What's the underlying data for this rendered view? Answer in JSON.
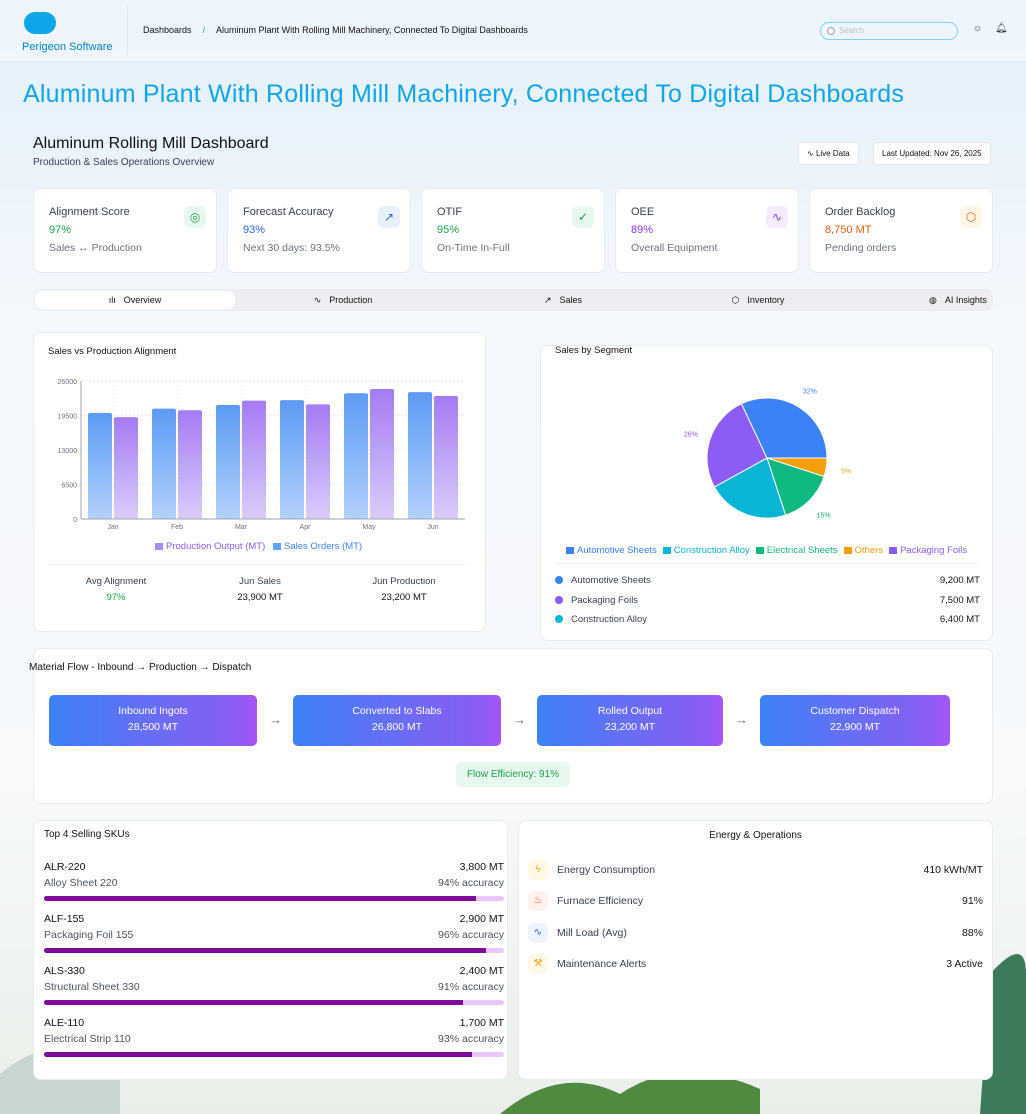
{
  "header": {
    "brand": "Perigeon Software",
    "breadcrumb": [
      "Dashboards",
      "Aluminum Plant With Rolling Mill Machinery, Connected To Digital Dashboards"
    ],
    "search_placeholder": "Search"
  },
  "page_title": "Aluminum Plant With Rolling Mill Machinery, Connected To Digital Dashboards",
  "dashboard": {
    "title": "Aluminum Rolling Mill Dashboard",
    "subtitle": "Production & Sales Operations Overview",
    "live_label": "Live Data",
    "updated": "Last Updated: Nov 26, 2025"
  },
  "kpis": [
    {
      "label": "Alignment Score",
      "value": "97%",
      "sub": "Sales ↔ Production",
      "icon": "target-icon",
      "color": "#16a34a",
      "bg": "#e7f9ee"
    },
    {
      "label": "Forecast Accuracy",
      "value": "93%",
      "sub": "Next 30 days: 93.5%",
      "icon": "trending-up-icon",
      "color": "#2563eb",
      "bg": "#e8f0fe"
    },
    {
      "label": "OTIF",
      "value": "95%",
      "sub": "On-Time In-Full",
      "icon": "check-circle-icon",
      "color": "#16a34a",
      "bg": "#e7f9ee"
    },
    {
      "label": "OEE",
      "value": "89%",
      "sub": "Overall Equipment",
      "icon": "activity-icon",
      "color": "#9333ea",
      "bg": "#f5ebfe"
    },
    {
      "label": "Order Backlog",
      "value": "8,750 MT",
      "sub": "Pending orders",
      "icon": "box-icon",
      "color": "#ea580c",
      "bg": "#fff5e6"
    }
  ],
  "tabs": [
    "Overview",
    "Production",
    "Sales",
    "Inventory",
    "AI Insights"
  ],
  "chart_data": [
    {
      "type": "bar",
      "title": "Sales vs Production Alignment",
      "categories": [
        "Jan",
        "Feb",
        "Mar",
        "Apr",
        "May",
        "Jun"
      ],
      "series": [
        {
          "name": "Sales Orders (MT)",
          "values": [
            20000,
            20800,
            21500,
            22400,
            23700,
            23900
          ],
          "color": "#60a5fa"
        },
        {
          "name": "Production Output (MT)",
          "values": [
            19200,
            20500,
            22300,
            21600,
            24500,
            23200
          ],
          "color": "#a78bfa"
        }
      ],
      "legend_order": [
        "Production Output (MT)",
        "Sales Orders (MT)"
      ],
      "yticks": [
        0,
        6500,
        13000,
        19500,
        26000
      ],
      "ylim": [
        0,
        26000
      ],
      "grid": true,
      "legend": "bottom"
    },
    {
      "type": "pie",
      "title": "Sales by Segment",
      "categories": [
        "Automotive Sheets",
        "Construction Alloy",
        "Electrical Sheets",
        "Others",
        "Packaging Foils"
      ],
      "values": [
        32,
        22,
        15,
        5,
        26
      ],
      "colors": [
        "#3b82f6",
        "#06b6d4",
        "#10b981",
        "#f59e0b",
        "#8b5cf6"
      ],
      "legend": "bottom"
    }
  ],
  "alignment_stats": [
    {
      "label": "Avg Alignment",
      "value": "97%"
    },
    {
      "label": "Jun Sales",
      "value": "23,900 MT"
    },
    {
      "label": "Jun Production",
      "value": "23,200 MT"
    }
  ],
  "segments": [
    {
      "name": "Automotive Sheets",
      "value": "9,200 MT",
      "color": "#3b82f6"
    },
    {
      "name": "Packaging Foils",
      "value": "7,500 MT",
      "color": "#8b5cf6"
    },
    {
      "name": "Construction Alloy",
      "value": "6,400 MT",
      "color": "#06b6d4"
    }
  ],
  "flow": {
    "title": "Material Flow - Inbound → Production → Dispatch",
    "steps": [
      {
        "label": "Inbound Ingots",
        "value": "28,500 MT"
      },
      {
        "label": "Converted to Slabs",
        "value": "26,800 MT"
      },
      {
        "label": "Rolled Output",
        "value": "23,200 MT"
      },
      {
        "label": "Customer Dispatch",
        "value": "22,900 MT"
      }
    ],
    "efficiency": "Flow Efficiency: 91%"
  },
  "skus": {
    "title": "Top 4 Selling SKUs",
    "items": [
      {
        "code": "ALR-220",
        "name": "Alloy Sheet 220",
        "qty": "3,800 MT",
        "acc": "94% accuracy",
        "pct": 94
      },
      {
        "code": "ALF-155",
        "name": "Packaging Foil 155",
        "qty": "2,900 MT",
        "acc": "96% accuracy",
        "pct": 96
      },
      {
        "code": "ALS-330",
        "name": "Structural Sheet 330",
        "qty": "2,400 MT",
        "acc": "91% accuracy",
        "pct": 91
      },
      {
        "code": "ALE-110",
        "name": "Electrical Strip 110",
        "qty": "1,700 MT",
        "acc": "93% accuracy",
        "pct": 93
      }
    ]
  },
  "energy": {
    "title": "Energy & Operations",
    "items": [
      {
        "label": "Energy Consumption",
        "value": "410 kWh/MT",
        "icon": "lightning-icon",
        "color": "#eab308",
        "bg": "#fef9e7"
      },
      {
        "label": "Furnace Efficiency",
        "value": "91%",
        "icon": "flame-icon",
        "color": "#ea580c",
        "bg": "#fff1ec"
      },
      {
        "label": "Mill Load (Avg)",
        "value": "88%",
        "icon": "activity-icon",
        "color": "#2563eb",
        "bg": "#eef4ff"
      },
      {
        "label": "Maintenance Alerts",
        "value": "3 Active",
        "icon": "wrench-icon",
        "color": "#f59e0b",
        "bg": "#fff8e8"
      }
    ]
  }
}
